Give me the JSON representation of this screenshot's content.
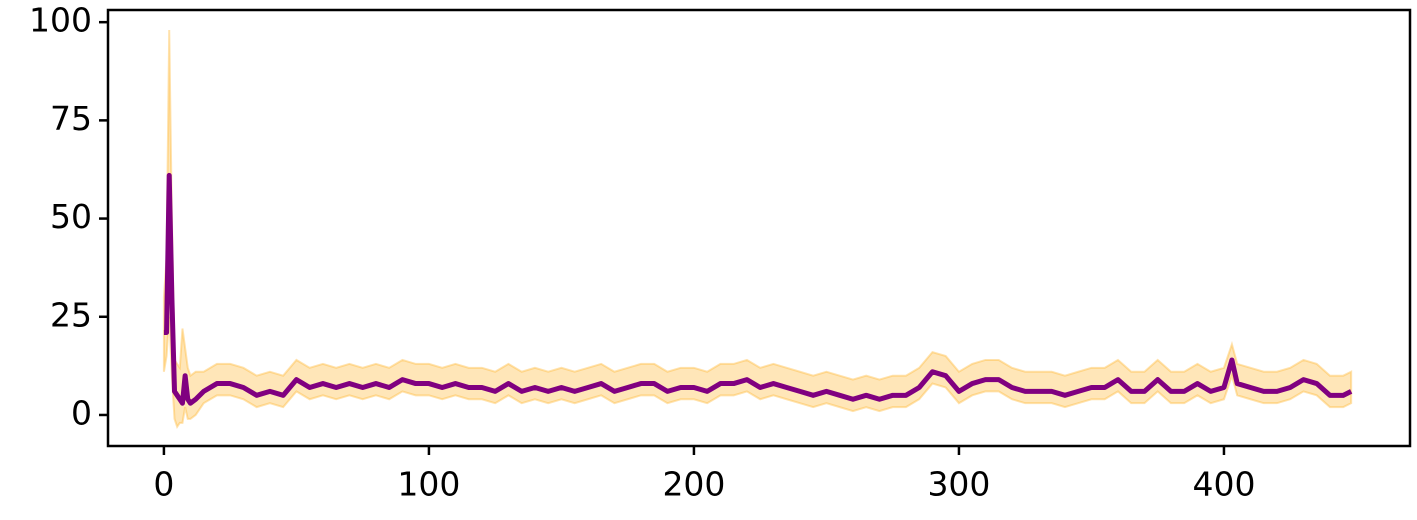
{
  "chart_data": {
    "type": "line",
    "xlim": [
      -21.1,
      470.2
    ],
    "ylim": [
      -7.9,
      103.1
    ],
    "xticks": [
      0,
      100,
      200,
      300,
      400
    ],
    "yticks": [
      0,
      25,
      50,
      75,
      100
    ],
    "x": [
      0,
      1,
      2,
      3,
      4,
      5,
      6,
      7,
      8,
      9,
      10,
      12,
      15,
      20,
      25,
      30,
      35,
      40,
      45,
      50,
      55,
      60,
      65,
      70,
      75,
      80,
      85,
      90,
      95,
      100,
      105,
      110,
      115,
      120,
      125,
      130,
      135,
      140,
      145,
      150,
      155,
      160,
      165,
      170,
      175,
      180,
      185,
      190,
      195,
      200,
      205,
      210,
      215,
      220,
      225,
      230,
      235,
      240,
      245,
      250,
      255,
      260,
      265,
      270,
      275,
      280,
      285,
      290,
      295,
      300,
      305,
      310,
      315,
      320,
      325,
      330,
      335,
      340,
      345,
      350,
      355,
      360,
      365,
      370,
      375,
      380,
      385,
      390,
      395,
      400,
      403,
      405,
      410,
      415,
      420,
      425,
      430,
      435,
      440,
      445,
      448
    ],
    "series": [
      {
        "color": "#800080",
        "band_color": "#ffb733",
        "values": [
          21,
          21,
          61,
          30,
          6,
          5,
          4,
          3,
          10,
          4,
          3,
          4,
          6,
          8,
          8,
          7,
          5,
          6,
          5,
          9,
          7,
          8,
          7,
          8,
          7,
          8,
          7,
          9,
          8,
          8,
          7,
          8,
          7,
          7,
          6,
          8,
          6,
          7,
          6,
          7,
          6,
          7,
          8,
          6,
          7,
          8,
          8,
          6,
          7,
          7,
          6,
          8,
          8,
          9,
          7,
          8,
          7,
          6,
          5,
          6,
          5,
          4,
          5,
          4,
          5,
          5,
          7,
          11,
          10,
          6,
          8,
          9,
          9,
          7,
          6,
          6,
          6,
          5,
          6,
          7,
          7,
          9,
          6,
          6,
          9,
          6,
          6,
          8,
          6,
          7,
          14,
          8,
          7,
          6,
          6,
          7,
          9,
          8,
          5,
          5,
          6
        ],
        "lower": [
          11,
          15,
          25,
          10,
          -1,
          -3,
          -2,
          -2,
          2,
          -1,
          -1,
          0,
          3,
          5,
          5,
          4,
          2,
          3,
          2,
          6,
          4,
          5,
          4,
          5,
          4,
          5,
          4,
          6,
          5,
          5,
          4,
          5,
          4,
          4,
          3,
          5,
          3,
          4,
          3,
          4,
          3,
          4,
          5,
          3,
          4,
          5,
          5,
          3,
          4,
          4,
          3,
          5,
          5,
          6,
          4,
          5,
          4,
          3,
          2,
          3,
          2,
          1,
          2,
          1,
          2,
          2,
          4,
          8,
          7,
          3,
          5,
          6,
          6,
          4,
          3,
          3,
          3,
          2,
          3,
          4,
          4,
          6,
          3,
          3,
          6,
          3,
          3,
          5,
          3,
          4,
          10,
          5,
          4,
          3,
          3,
          4,
          6,
          5,
          2,
          2,
          3
        ],
        "upper": [
          30,
          40,
          98,
          50,
          14,
          13,
          12,
          22,
          17,
          12,
          10,
          11,
          11,
          13,
          13,
          12,
          10,
          11,
          10,
          14,
          12,
          13,
          12,
          13,
          12,
          13,
          12,
          14,
          13,
          13,
          12,
          13,
          12,
          12,
          11,
          13,
          11,
          12,
          11,
          12,
          11,
          12,
          13,
          11,
          12,
          13,
          13,
          11,
          12,
          12,
          11,
          13,
          13,
          14,
          12,
          13,
          12,
          11,
          10,
          11,
          10,
          9,
          10,
          9,
          10,
          10,
          12,
          16,
          15,
          11,
          13,
          14,
          14,
          12,
          11,
          11,
          11,
          10,
          11,
          12,
          12,
          14,
          11,
          11,
          14,
          11,
          11,
          13,
          11,
          12,
          18,
          13,
          12,
          11,
          11,
          12,
          14,
          13,
          10,
          10,
          11
        ]
      }
    ]
  }
}
